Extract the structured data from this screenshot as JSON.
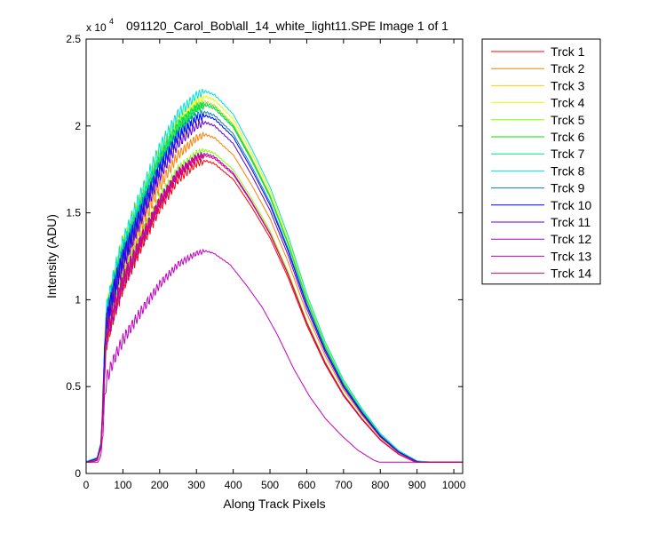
{
  "chart_data": {
    "type": "line",
    "title": "091120_Carol_Bob\\all_14_white_light11.SPE  Image 1 of 1",
    "xlabel": "Along Track Pixels",
    "ylabel": "Intensity (ADU)",
    "y_multiplier": {
      "base": "x 10",
      "exponent": "4"
    },
    "xlim": [
      0,
      1024
    ],
    "ylim": [
      0,
      2.5
    ],
    "xticks": [
      0,
      100,
      200,
      300,
      400,
      500,
      600,
      700,
      800,
      900,
      1000
    ],
    "yticks": [
      0,
      0.5,
      1,
      1.5,
      2,
      2.5
    ],
    "xtick_labels": [
      "0",
      "100",
      "200",
      "300",
      "400",
      "500",
      "600",
      "700",
      "800",
      "900",
      "1000"
    ],
    "ytick_labels": [
      "0",
      "0.5",
      "1",
      "1.5",
      "2",
      "2.5"
    ],
    "grid": false,
    "legend_position": "outside-right",
    "shape_x": [
      0,
      30,
      40,
      45,
      50,
      55,
      60,
      80,
      100,
      150,
      200,
      250,
      300,
      325,
      350,
      400,
      450,
      500,
      550,
      600,
      650,
      700,
      750,
      800,
      850,
      900,
      950,
      1000,
      1024
    ],
    "shape_norm": [
      0.0315,
      0.042,
      0.081,
      0.175,
      0.32,
      0.42,
      0.445,
      0.53,
      0.6,
      0.73,
      0.85,
      0.94,
      0.99,
      1.0,
      0.99,
      0.94,
      0.85,
      0.75,
      0.62,
      0.47,
      0.345,
      0.245,
      0.17,
      0.105,
      0.06,
      0.033,
      0.029,
      0.029,
      0.029
    ],
    "series": [
      {
        "name": "Trck 1",
        "color": "#ff0000",
        "peak": 1.8,
        "min": 0.065,
        "late": 0.012
      },
      {
        "name": "Trck 2",
        "color": "#ff8000",
        "peak": 1.95,
        "min": 0.065,
        "late": 0.008
      },
      {
        "name": "Trck 3",
        "color": "#ffd000",
        "peak": 2.14,
        "min": 0.065,
        "late": 0.0
      },
      {
        "name": "Trck 4",
        "color": "#e0ff00",
        "peak": 2.17,
        "min": 0.065,
        "late": 0.0
      },
      {
        "name": "Trck 5",
        "color": "#80ff00",
        "peak": 1.86,
        "min": 0.065,
        "late": 0.004
      },
      {
        "name": "Trck 6",
        "color": "#00e000",
        "peak": 2.12,
        "min": 0.065,
        "late": 0.0
      },
      {
        "name": "Trck 7",
        "color": "#00e080",
        "peak": 2.13,
        "min": 0.065,
        "late": 0.0
      },
      {
        "name": "Trck 8",
        "color": "#00e0e0",
        "peak": 2.2,
        "min": 0.065,
        "late": 0.0
      },
      {
        "name": "Trck 9",
        "color": "#0080c0",
        "peak": 2.08,
        "min": 0.065,
        "late": 0.0
      },
      {
        "name": "Trck 10",
        "color": "#0000ff",
        "peak": 2.06,
        "min": 0.065,
        "late": 0.0
      },
      {
        "name": "Trck 11",
        "color": "#6000d0",
        "peak": 2.02,
        "min": 0.065,
        "late": 0.0
      },
      {
        "name": "Trck 12",
        "color": "#a000e0",
        "peak": 1.84,
        "min": 0.065,
        "late": 0.004
      },
      {
        "name": "Trck 13",
        "color": "#c000c0",
        "peak": 1.28,
        "min": 0.065,
        "late": -0.02,
        "shift": 0.85
      },
      {
        "name": "Trck 14",
        "color": "#e00060",
        "peak": 1.83,
        "min": 0.065,
        "late": 0.01
      }
    ]
  }
}
